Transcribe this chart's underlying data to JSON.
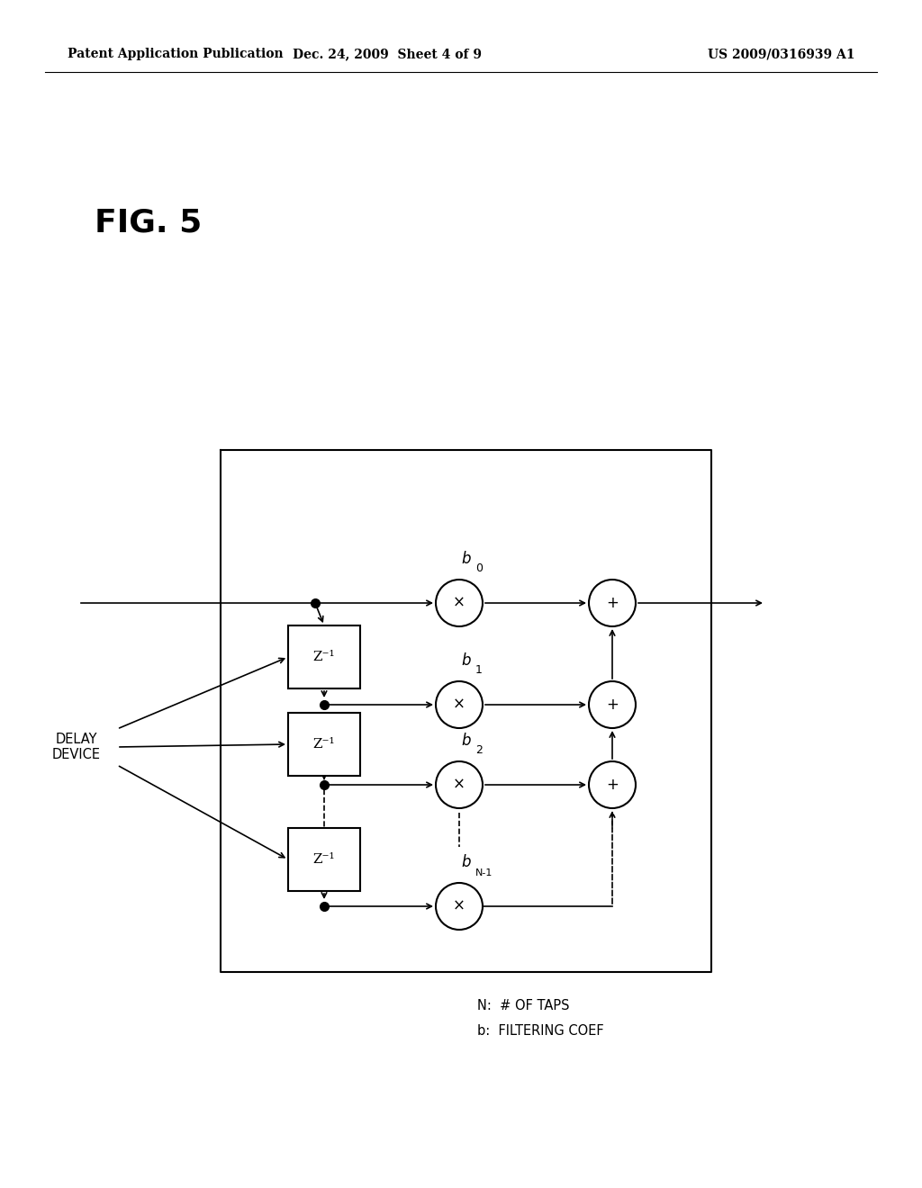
{
  "header_left": "Patent Application Publication",
  "header_mid": "Dec. 24, 2009  Sheet 4 of 9",
  "header_right": "US 2009/0316939 A1",
  "title": "FIG. 5",
  "legend_line1": "N:  # OF TAPS",
  "legend_line2": "b:  FILTERING COEF",
  "delay_label": "DELAY\nDEVICE",
  "bg_color": "#ffffff",
  "fg_color": "#000000",
  "fig_w": 10.24,
  "fig_h": 13.2,
  "dpi": 100
}
